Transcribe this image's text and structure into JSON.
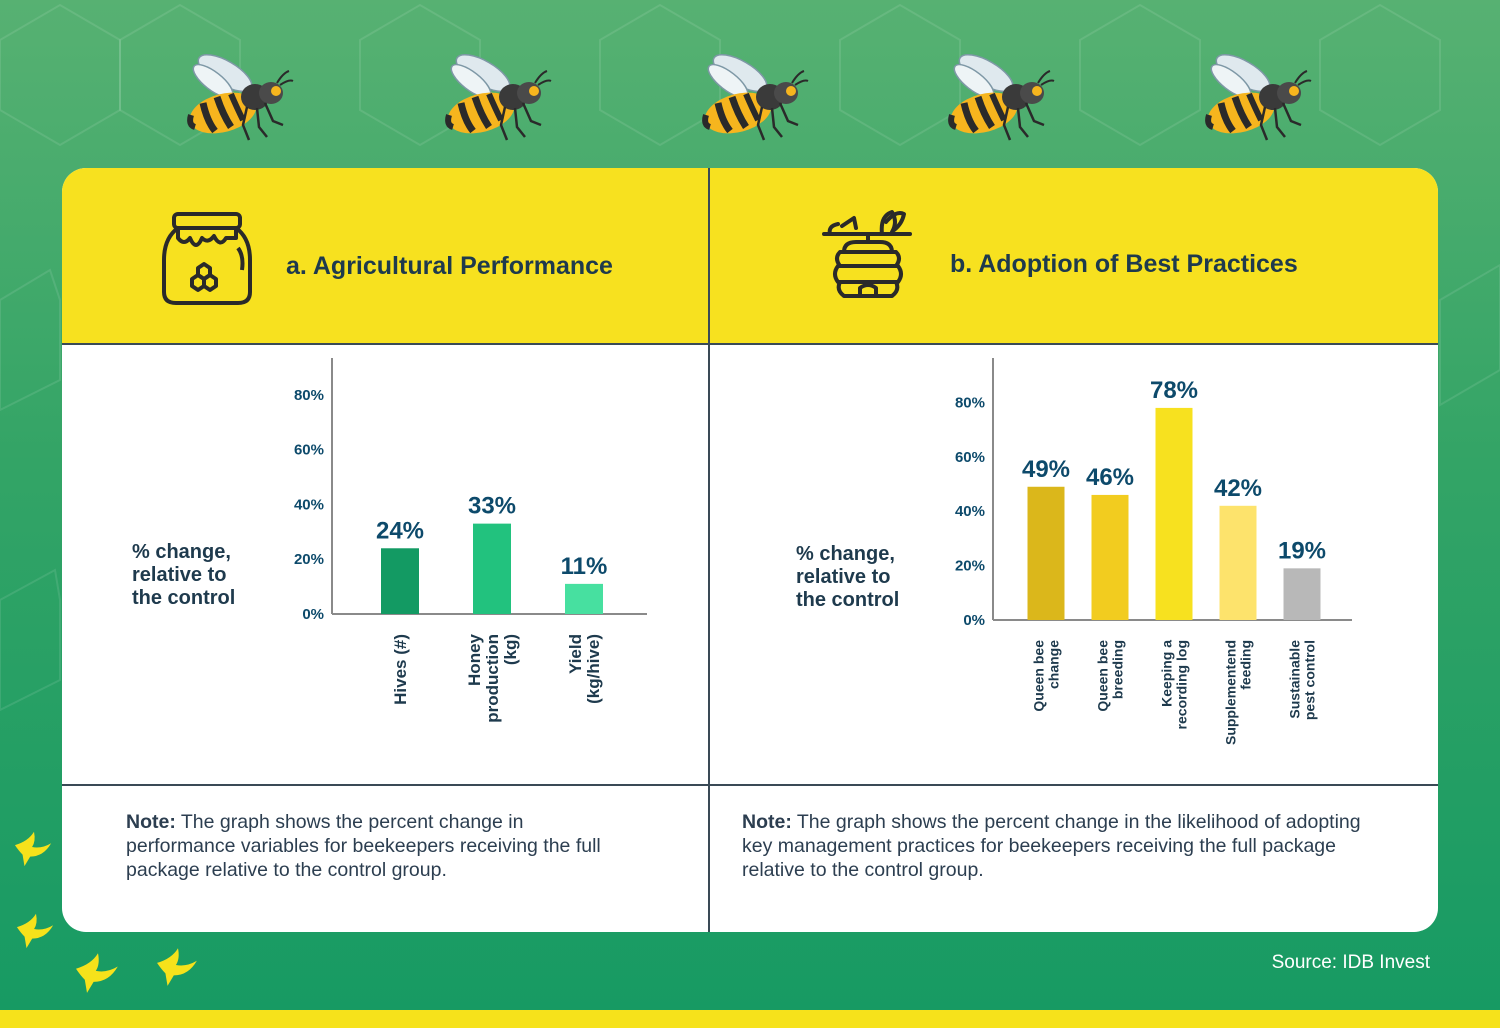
{
  "panels": [
    {
      "title": "a. Agricultural Performance",
      "icon": "honey-jar-icon",
      "note_bold": "Note:",
      "note_text": " The graph shows the percent change in performance variables for beekeepers receiving the full package relative to the control group."
    },
    {
      "title": "b. Adoption of Best Practices",
      "icon": "beehive-icon",
      "note_bold": "Note:",
      "note_text": " The graph shows the percent change in the likelihood of adopting key management practices for beekeepers receiving the full package relative to the control group."
    }
  ],
  "source": "Source: IDB Invest",
  "chart_data": [
    {
      "type": "bar",
      "ylabel": [
        "% change,",
        "relative to",
        "the control"
      ],
      "yticks": [
        "0%",
        "20%",
        "40%",
        "60%",
        "80%"
      ],
      "ylim": [
        0,
        88
      ],
      "categories": [
        [
          "Hives (#)"
        ],
        [
          "Honey",
          "production",
          "(kg)"
        ],
        [
          "Yield",
          "(kg/hive)"
        ]
      ],
      "values": [
        24,
        33,
        11
      ],
      "data_labels": [
        "24%",
        "33%",
        "11%"
      ],
      "colors": [
        "#139a63",
        "#22c27e",
        "#47e0a0"
      ]
    },
    {
      "type": "bar",
      "ylabel": [
        "% change,",
        "relative to",
        "the control"
      ],
      "yticks": [
        "0%",
        "20%",
        "40%",
        "60%",
        "80%"
      ],
      "ylim": [
        0,
        89
      ],
      "categories": [
        [
          "Queen bee",
          "change"
        ],
        [
          "Queen bee",
          "breeding"
        ],
        [
          "Keeping a",
          "recording log"
        ],
        [
          "Supplementend",
          "feeding"
        ],
        [
          "Sustainable",
          "pest control"
        ]
      ],
      "values": [
        49,
        46,
        78,
        42,
        19
      ],
      "data_labels": [
        "49%",
        "46%",
        "78%",
        "42%",
        "19%"
      ],
      "colors": [
        "#dbb71b",
        "#f2cc1f",
        "#f7e11f",
        "#fde36c",
        "#b8b8b8"
      ]
    }
  ],
  "colors": {
    "header": "#f7e11f",
    "label_text": "#0d4a6b",
    "dark_text": "#1e3a4d"
  }
}
